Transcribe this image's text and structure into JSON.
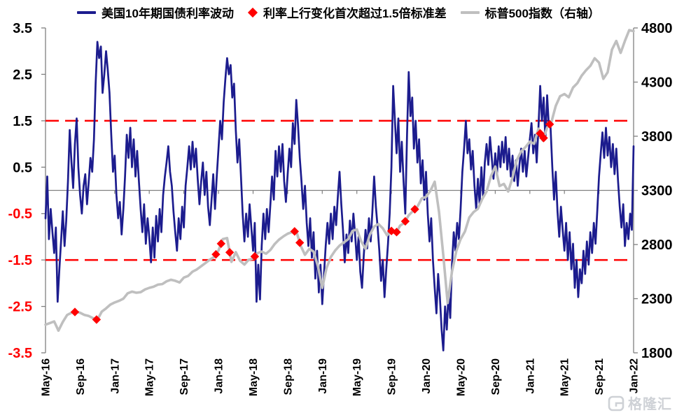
{
  "watermark": {
    "text": "格隆汇",
    "logo": "glh-rounded-square-logo",
    "color": "#c9cdd2"
  },
  "chart_data": {
    "type": "line",
    "title": "",
    "background": "#ffffff",
    "legend": [
      {
        "label": "美国10年期国债利率波动",
        "marker": "line",
        "color": "#1c1c8e"
      },
      {
        "label": "利率上行变化首次超过1.5倍标准差",
        "marker": "diamond",
        "color": "#ff0000"
      },
      {
        "label": "标普500指数（右轴）",
        "marker": "line",
        "color": "#bfbfbf"
      }
    ],
    "axis_style": {
      "line_color": "#808080"
    },
    "x_axis": {
      "tick_labels": [
        "May-16",
        "Sep-16",
        "Jan-17",
        "May-17",
        "Sep-17",
        "Jan-18",
        "May-18",
        "Sep-18",
        "Jan-19",
        "May-19",
        "Sep-19",
        "Jan-20",
        "May-20",
        "Sep-20",
        "Jan-21",
        "May-21",
        "Sep-21",
        "Jan-22"
      ],
      "months_span": 68,
      "tick_interval_months": 4,
      "cross_at": 0
    },
    "left_axis": {
      "min": -3.5,
      "max": 3.5,
      "ticks": [
        3.5,
        2.5,
        1.5,
        0.5,
        -0.5,
        -1.5,
        -2.5,
        -3.5
      ],
      "negative_label_color": "#ff0000"
    },
    "right_axis": {
      "min": 1800,
      "max": 4800,
      "ticks": [
        4800,
        4300,
        3800,
        3300,
        2800,
        2300,
        1800
      ]
    },
    "reference_lines": [
      {
        "axis": "left",
        "value": 1.5,
        "color": "#ff0000",
        "style": "dashed"
      },
      {
        "axis": "left",
        "value": -1.5,
        "color": "#ff0000",
        "style": "dashed"
      }
    ],
    "series": [
      {
        "id": "us10y-vol-line",
        "name": "美国10年期国债利率波动",
        "axis": "left",
        "type": "line",
        "color": "#1c1c8e",
        "width": 2.7,
        "points_flat": [
          0,
          -0.6,
          0.2,
          0.3,
          0.4,
          -1.05,
          0.6,
          -0.4,
          0.8,
          -0.9,
          1,
          -1.35,
          1.2,
          -0.8,
          1.4,
          -2.4,
          1.6,
          -1.7,
          1.8,
          -1.1,
          2,
          -0.45,
          2.2,
          -1.2,
          2.4,
          -0.65,
          2.6,
          0.2,
          2.8,
          1.3,
          3,
          0.6,
          3.2,
          0.05,
          3.4,
          1,
          3.6,
          1.55,
          3.8,
          0.5,
          4,
          -0.1,
          4.2,
          -0.5,
          4.4,
          0.1,
          4.6,
          0.35,
          4.8,
          -0.3,
          5,
          0.2,
          5.2,
          0.7,
          5.4,
          0.4,
          5.6,
          1.1,
          5.8,
          2.3,
          6,
          3.2,
          6.2,
          2.85,
          6.4,
          3.1,
          6.6,
          2.1,
          6.8,
          2.5,
          7,
          3,
          7.2,
          2.6,
          7.4,
          2.1,
          7.6,
          1.2,
          7.8,
          0.4,
          8,
          0.75,
          8.2,
          -0.1,
          8.4,
          -0.6,
          8.6,
          -0.25,
          8.8,
          -0.95,
          9,
          -0.4,
          9.2,
          0.3,
          9.4,
          1.2,
          9.6,
          0.7,
          9.8,
          1.35,
          10,
          0.5,
          10.2,
          1.1,
          10.4,
          0.3,
          10.6,
          0.85,
          10.8,
          0.2,
          11,
          -0.4,
          11.2,
          -0.9,
          11.4,
          -0.3,
          11.6,
          -1.15,
          11.8,
          -0.6,
          12,
          -1,
          12.2,
          -1.55,
          12.4,
          -0.8,
          12.6,
          -1.45,
          12.8,
          -0.55,
          13,
          -1.1,
          13.2,
          -0.4,
          13.4,
          -0.9,
          13.6,
          -0.1,
          13.8,
          0.3,
          14,
          0.6,
          14.2,
          0.95,
          14.4,
          0.4,
          14.6,
          0.1,
          14.8,
          -0.45,
          15,
          -0.9,
          15.2,
          -1.3,
          15.4,
          -0.6,
          15.6,
          -1.05,
          15.8,
          -0.35,
          16,
          -0.8,
          16.2,
          0.1,
          16.4,
          0.5,
          16.6,
          0.95,
          16.8,
          0.45,
          17,
          1.05,
          17.2,
          0.5,
          17.4,
          0.9,
          17.6,
          0.25,
          17.8,
          -0.3,
          18,
          0.2,
          18.2,
          0.6,
          18.4,
          -0.1,
          18.6,
          0.4,
          18.8,
          -0.35,
          19,
          -0.75,
          19.2,
          -0.2,
          19.4,
          0.35,
          19.6,
          -0.4,
          19.8,
          0.3,
          20,
          0.9,
          20.2,
          1.5,
          20.4,
          1.1,
          20.6,
          1.9,
          20.8,
          2.4,
          21,
          2.85,
          21.2,
          2.5,
          21.4,
          2.7,
          21.6,
          2,
          21.8,
          2.3,
          22,
          1.3,
          22.2,
          0.6,
          22.4,
          1.1,
          22.6,
          0.3,
          22.8,
          -0.5,
          23,
          -1.1,
          23.2,
          -0.5,
          23.4,
          -1,
          23.6,
          -0.3,
          23.8,
          -0.8,
          24,
          -1.3,
          24.2,
          -0.7,
          24.4,
          -2.4,
          24.6,
          -1.6,
          24.8,
          -2.35,
          25,
          -1.2,
          25.2,
          -0.5,
          25.4,
          -1.05,
          25.6,
          -0.4,
          25.8,
          -0.9,
          26,
          -0.3,
          26.2,
          0.3,
          26.4,
          -0.2,
          26.6,
          0.85,
          26.8,
          0.3,
          27,
          0.95,
          27.2,
          0.4,
          27.4,
          1,
          27.6,
          0.2,
          27.8,
          -0.25,
          28,
          0.35,
          28.2,
          0.9,
          28.4,
          0.5,
          28.6,
          1.45,
          28.8,
          1,
          29,
          1.95,
          29.2,
          1.4,
          29.4,
          0.7,
          29.6,
          0.2,
          29.8,
          -0.4,
          30,
          0.1,
          30.2,
          -0.7,
          30.4,
          -1.2,
          30.6,
          -0.6,
          30.8,
          -1.45,
          31,
          -0.9,
          31.2,
          -1.9,
          31.4,
          -1.3,
          31.6,
          -2.2,
          31.8,
          -1.6,
          32,
          -2.45,
          32.2,
          -1.8,
          32.4,
          -1.2,
          32.6,
          -0.7,
          32.8,
          -1.15,
          33,
          -0.5,
          33.2,
          -1.05,
          33.4,
          -0.35,
          33.6,
          -0.75,
          33.8,
          -0.15,
          34,
          0.4,
          34.2,
          -0.3,
          34.4,
          -0.85,
          34.6,
          -1.55,
          34.8,
          -0.95,
          35,
          -1.35,
          35.2,
          -0.65,
          35.4,
          -1.1,
          35.6,
          -0.5,
          35.8,
          -0.95,
          36,
          -1.5,
          36.2,
          -1,
          36.4,
          -1.75,
          36.6,
          -2.1,
          36.8,
          -1.4,
          37,
          -0.85,
          37.2,
          -1.25,
          37.4,
          -0.6,
          37.6,
          -1.1,
          37.8,
          -0.45,
          38,
          0.3,
          38.2,
          -0.35,
          38.4,
          -0.8,
          38.6,
          -1.3,
          38.8,
          -1.95,
          39,
          -1.5,
          39.2,
          -2.3,
          39.4,
          -1.7,
          39.6,
          -1.15,
          39.8,
          -0.5,
          40,
          0.5,
          40.2,
          2.25,
          40.4,
          1.5,
          40.6,
          0.8,
          40.8,
          1.55,
          41,
          0.4,
          41.2,
          1.05,
          41.4,
          0.2,
          41.6,
          -0.5,
          41.8,
          1.2,
          42,
          2.55,
          42.2,
          1.6,
          42.4,
          2,
          42.6,
          0.9,
          42.8,
          1.5,
          43,
          0.6,
          43.2,
          1.1,
          43.4,
          0.15,
          43.6,
          0.65,
          43.8,
          -0.2,
          44,
          0.4,
          44.2,
          -0.5,
          44.4,
          -1.1,
          44.6,
          -0.6,
          44.8,
          -1.5,
          45,
          -2.1,
          45.2,
          -2.65,
          45.4,
          -1.8,
          45.6,
          -2.3,
          45.8,
          -3,
          46,
          -3.45,
          46.2,
          -2.5,
          46.4,
          -3,
          46.6,
          -2.2,
          46.8,
          -2.75,
          47,
          -1.6,
          47.2,
          -0.9,
          47.4,
          -1.3,
          47.6,
          -0.7,
          47.8,
          -1.05,
          48,
          -0.4,
          48.2,
          0.4,
          48.4,
          0.9,
          48.6,
          1.5,
          48.8,
          0.8,
          49,
          1.1,
          49.2,
          0.45,
          49.4,
          0.85,
          49.6,
          0.1,
          49.8,
          -0.4,
          50,
          0.25,
          50.2,
          -0.3,
          50.4,
          0.5,
          50.6,
          -0.15,
          50.8,
          0.6,
          51,
          1,
          51.2,
          0.55,
          51.4,
          1.15,
          51.6,
          0.7,
          51.8,
          0.25,
          52,
          0.8,
          52.2,
          0.35,
          52.4,
          0.95,
          52.6,
          0.5,
          52.8,
          1.05,
          53,
          0.6,
          53.2,
          1.15,
          53.4,
          0.45,
          53.6,
          0.9,
          53.8,
          0.3,
          54,
          0.75,
          54.2,
          0.2,
          54.4,
          0.65,
          54.6,
          0.1,
          54.8,
          0.55,
          55,
          0.9,
          55.2,
          0.4,
          55.4,
          0.85,
          55.6,
          0.3,
          55.8,
          0.7,
          56,
          1.1,
          56.2,
          1.45,
          56.4,
          0.8,
          56.6,
          1.2,
          56.8,
          0.6,
          57,
          1.35,
          57.2,
          2.25,
          57.4,
          1.5,
          57.6,
          2,
          57.8,
          1.1,
          58,
          2.05,
          58.2,
          1.4,
          58.4,
          1.35,
          58.6,
          0.5,
          58.8,
          -0.2,
          59,
          0.4,
          59.2,
          -0.45,
          59.4,
          -1,
          59.6,
          -0.35,
          59.8,
          -0.85,
          60,
          -1.3,
          60.2,
          -0.7,
          60.4,
          -1.5,
          60.6,
          -0.9,
          60.8,
          -1.7,
          61,
          -1.15,
          61.2,
          -2.1,
          61.4,
          -1.5,
          61.6,
          -2.3,
          61.8,
          -1.7,
          62,
          -2,
          62.2,
          -1.3,
          62.4,
          -1.8,
          62.6,
          -1.1,
          62.8,
          -1.6,
          63,
          -0.9,
          63.2,
          -1.35,
          63.4,
          -0.7,
          63.6,
          -1.15,
          63.8,
          -0.45,
          64,
          0.3,
          64.2,
          0.8,
          64.4,
          1.25,
          64.6,
          0.7,
          64.8,
          1.35,
          65,
          0.75,
          65.2,
          1.15,
          65.4,
          0.5,
          65.6,
          1,
          65.8,
          0.35,
          66,
          0.9,
          66.2,
          0.2,
          66.4,
          -0.35,
          66.6,
          -0.8,
          66.8,
          -0.3,
          67,
          -1.2,
          67.2,
          -0.7,
          67.4,
          -1.05,
          67.6,
          -0.5,
          67.8,
          -0.85,
          68,
          0.95
        ]
      },
      {
        "id": "sp500-line",
        "name": "标普500指数（右轴）",
        "axis": "right",
        "type": "line",
        "color": "#bfbfbf",
        "width": 3.6,
        "points_flat": [
          0,
          2060,
          0.5,
          2075,
          1,
          2090,
          1.5,
          2005,
          2,
          2085,
          2.5,
          2150,
          3,
          2170,
          3.5,
          2180,
          4,
          2170,
          4.5,
          2150,
          5,
          2140,
          5.5,
          2120,
          6,
          2105,
          6.5,
          2180,
          7,
          2210,
          7.5,
          2245,
          8,
          2265,
          8.5,
          2280,
          9,
          2300,
          9.5,
          2350,
          10,
          2365,
          10.5,
          2355,
          11,
          2360,
          11.5,
          2385,
          12,
          2400,
          12.5,
          2410,
          13,
          2430,
          13.5,
          2435,
          14,
          2460,
          14.5,
          2475,
          15,
          2465,
          15.5,
          2450,
          16,
          2495,
          16.5,
          2510,
          17,
          2550,
          17.5,
          2570,
          18,
          2600,
          18.5,
          2630,
          19,
          2660,
          19.5,
          2685,
          20,
          2745,
          20.5,
          2850,
          21,
          2860,
          21.5,
          2640,
          22,
          2730,
          22.5,
          2650,
          23,
          2615,
          23.5,
          2660,
          24,
          2670,
          24.5,
          2720,
          25,
          2735,
          25.5,
          2715,
          26,
          2750,
          26.5,
          2805,
          27,
          2845,
          27.5,
          2875,
          28,
          2900,
          28.5,
          2915,
          29,
          2925,
          29.5,
          2790,
          30,
          2705,
          30.5,
          2760,
          31,
          2735,
          31.5,
          2600,
          32,
          2400,
          32.5,
          2585,
          33,
          2685,
          33.5,
          2745,
          34,
          2790,
          34.5,
          2820,
          35,
          2850,
          35.5,
          2925,
          36,
          2940,
          36.5,
          2830,
          37,
          2760,
          37.5,
          2890,
          38,
          2965,
          38.5,
          2990,
          39,
          2950,
          39.5,
          2885,
          40,
          2925,
          40.5,
          2900,
          41,
          2975,
          41.5,
          3000,
          42,
          3070,
          42.5,
          3110,
          43,
          3150,
          43.5,
          3225,
          44,
          3240,
          44.5,
          3295,
          45,
          3380,
          45.5,
          3100,
          46,
          2700,
          46.5,
          2260,
          47,
          2550,
          47.5,
          2740,
          48,
          2850,
          48.5,
          2920,
          49,
          3050,
          49.5,
          3100,
          50,
          3130,
          50.5,
          3220,
          51,
          3290,
          51.5,
          3430,
          52,
          3520,
          52.5,
          3340,
          53,
          3360,
          53.5,
          3290,
          54,
          3420,
          54.5,
          3580,
          55,
          3660,
          55.5,
          3700,
          56,
          3750,
          56.5,
          3730,
          57,
          3870,
          57.5,
          3760,
          58,
          3880,
          58.5,
          3930,
          59,
          4080,
          59.5,
          4170,
          60,
          4190,
          60.5,
          4160,
          61,
          4250,
          61.5,
          4290,
          62,
          4360,
          62.5,
          4410,
          63,
          4450,
          63.5,
          4520,
          64,
          4480,
          64.5,
          4330,
          65,
          4390,
          65.5,
          4600,
          66,
          4680,
          66.5,
          4570,
          67,
          4680,
          67.5,
          4780,
          68,
          4770
        ]
      },
      {
        "id": "signal-diamonds",
        "name": "利率上行变化首次超过1.5倍标准差",
        "axis": "right",
        "type": "scatter-diamond",
        "color": "#ff0000",
        "size": 6.2,
        "points_flat": [
          3.4,
          2177,
          5.9,
          2107,
          19.7,
          2709,
          20.3,
          2808,
          21.3,
          2728,
          24.2,
          2690,
          28.8,
          2921,
          29.4,
          2817,
          40,
          2925,
          40.6,
          2915,
          41.6,
          3014,
          42.7,
          3126,
          57.2,
          3826,
          57.6,
          3784,
          58.3,
          3910
        ]
      }
    ]
  }
}
